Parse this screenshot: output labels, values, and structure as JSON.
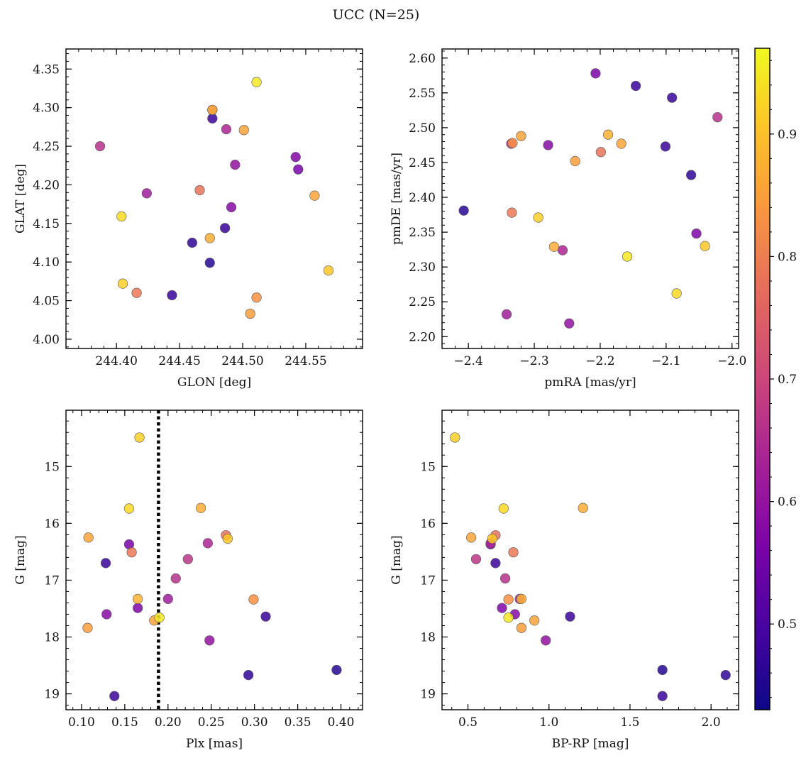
{
  "figure": {
    "title": "UCC (N=25)"
  },
  "colorbar": {
    "range": [
      0.43,
      0.97
    ],
    "ticks": [
      0.5,
      0.6,
      0.7,
      0.8,
      0.9
    ],
    "tick_labels": [
      "0.5",
      "0.6",
      "0.7",
      "0.8",
      "0.9"
    ],
    "colormap": "plasma"
  },
  "probabilities": [
    0.92,
    0.93,
    0.87,
    0.78,
    0.86,
    0.48,
    0.91,
    0.88,
    0.64,
    0.62,
    0.79,
    0.57,
    0.85,
    0.66,
    0.86,
    0.58,
    0.6,
    0.56,
    0.83,
    0.67,
    0.95,
    0.48,
    0.47,
    0.46,
    0.48
  ],
  "chart_data": [
    {
      "type": "scatter",
      "panel": "top-left",
      "xlabel": "GLON [deg]",
      "ylabel": "GLAT [deg]",
      "xlim": [
        244.36,
        244.595
      ],
      "ylim": [
        3.988,
        4.376
      ],
      "xticks": [
        244.4,
        244.45,
        244.5,
        244.55
      ],
      "xtick_labels": [
        "244.40",
        "244.45",
        "244.50",
        "244.55"
      ],
      "yticks": [
        4.0,
        4.05,
        4.1,
        4.15,
        4.2,
        4.25,
        4.3,
        4.35
      ],
      "ytick_labels": [
        "4.00",
        "4.05",
        "4.10",
        "4.15",
        "4.20",
        "4.25",
        "4.30",
        "4.35"
      ],
      "x": [
        244.405,
        244.404,
        244.474,
        244.466,
        244.557,
        244.444,
        244.568,
        244.476,
        244.487,
        244.424,
        244.416,
        244.542,
        244.506,
        244.387,
        244.501,
        244.491,
        244.494,
        244.544,
        244.511,
        244.476,
        244.511,
        244.486,
        244.46,
        244.474,
        244.476
      ],
      "y": [
        4.072,
        4.159,
        4.131,
        4.193,
        4.186,
        4.057,
        4.089,
        4.297,
        4.272,
        4.189,
        4.06,
        4.236,
        4.033,
        4.25,
        4.271,
        4.171,
        4.226,
        4.22,
        4.054,
        4.297,
        4.333,
        4.144,
        4.125,
        4.099,
        4.286
      ]
    },
    {
      "type": "scatter",
      "panel": "top-right",
      "xlabel": "pmRA [mas/yr]",
      "ylabel": "pmDE [mas/yr]",
      "xlim": [
        -2.44,
        -1.99
      ],
      "ylim": [
        2.183,
        2.613
      ],
      "xticks": [
        -2.4,
        -2.3,
        -2.2,
        -2.1,
        -2.0
      ],
      "xtick_labels": [
        "−2.4",
        "−2.3",
        "−2.2",
        "−2.1",
        "−2.0"
      ],
      "yticks": [
        2.2,
        2.25,
        2.3,
        2.35,
        2.4,
        2.45,
        2.5,
        2.55,
        2.6
      ],
      "ytick_labels": [
        "2.20",
        "2.25",
        "2.30",
        "2.35",
        "2.40",
        "2.45",
        "2.50",
        "2.55",
        "2.60"
      ],
      "x": [
        -2.294,
        -2.084,
        -2.27,
        -2.199,
        -2.168,
        -2.091,
        -2.041,
        -2.188,
        -2.257,
        -2.342,
        -2.334,
        -2.054,
        -2.238,
        -2.022,
        -2.32,
        -2.279,
        -2.247,
        -2.207,
        -2.333,
        -2.335,
        -2.159,
        -2.101,
        -2.062,
        -2.407,
        -2.146
      ],
      "y": [
        2.371,
        2.262,
        2.329,
        2.465,
        2.477,
        2.543,
        2.33,
        2.49,
        2.324,
        2.232,
        2.378,
        2.348,
        2.452,
        2.515,
        2.488,
        2.475,
        2.219,
        2.578,
        2.478,
        2.477,
        2.315,
        2.473,
        2.432,
        2.381,
        2.56
      ]
    },
    {
      "type": "scatter",
      "panel": "bottom-left",
      "xlabel": "Plx [mas]",
      "ylabel": "G [mag]",
      "xlim": [
        0.082,
        0.425
      ],
      "ylim": [
        19.28,
        14.01
      ],
      "y_inverted": true,
      "vline": 0.189,
      "xticks": [
        0.1,
        0.15,
        0.2,
        0.25,
        0.3,
        0.35,
        0.4
      ],
      "xtick_labels": [
        "0.10",
        "0.15",
        "0.20",
        "0.25",
        "0.30",
        "0.35",
        "0.40"
      ],
      "yticks": [
        15,
        16,
        17,
        18,
        19
      ],
      "ytick_labels": [
        "15",
        "16",
        "17",
        "18",
        "19"
      ],
      "x": [
        0.167,
        0.155,
        0.238,
        0.267,
        0.108,
        0.128,
        0.269,
        0.165,
        0.246,
        0.2,
        0.158,
        0.165,
        0.107,
        0.209,
        0.184,
        0.129,
        0.248,
        0.155,
        0.299,
        0.223,
        0.19,
        0.313,
        0.293,
        0.395,
        0.138
      ],
      "y": [
        14.49,
        15.74,
        15.73,
        16.21,
        16.25,
        16.7,
        16.27,
        17.33,
        16.35,
        17.33,
        16.51,
        17.49,
        17.84,
        16.97,
        17.71,
        17.6,
        18.06,
        16.37,
        17.34,
        16.63,
        17.66,
        17.64,
        18.67,
        18.58,
        19.04
      ]
    },
    {
      "type": "scatter",
      "panel": "bottom-right",
      "xlabel": "BP-RP [mag]",
      "ylabel": "G [mag]",
      "xlim": [
        0.34,
        2.17
      ],
      "ylim": [
        19.28,
        14.01
      ],
      "y_inverted": true,
      "xticks": [
        0.5,
        1.0,
        1.5,
        2.0
      ],
      "xtick_labels": [
        "0.5",
        "1.0",
        "1.5",
        "2.0"
      ],
      "yticks": [
        15,
        16,
        17,
        18,
        19
      ],
      "ytick_labels": [
        "15",
        "16",
        "17",
        "18",
        "19"
      ],
      "x": [
        0.42,
        0.72,
        1.21,
        0.67,
        0.52,
        0.67,
        0.65,
        0.83,
        0.64,
        0.82,
        0.78,
        0.71,
        0.83,
        0.73,
        0.91,
        0.79,
        0.98,
        0.64,
        0.75,
        0.55,
        0.75,
        1.13,
        2.09,
        1.7,
        1.7
      ],
      "y": [
        14.49,
        15.74,
        15.73,
        16.21,
        16.25,
        16.7,
        16.27,
        17.33,
        16.35,
        17.33,
        16.51,
        17.49,
        17.84,
        16.97,
        17.71,
        17.6,
        18.06,
        16.37,
        17.34,
        16.63,
        17.66,
        17.64,
        18.67,
        18.58,
        19.04
      ]
    }
  ]
}
